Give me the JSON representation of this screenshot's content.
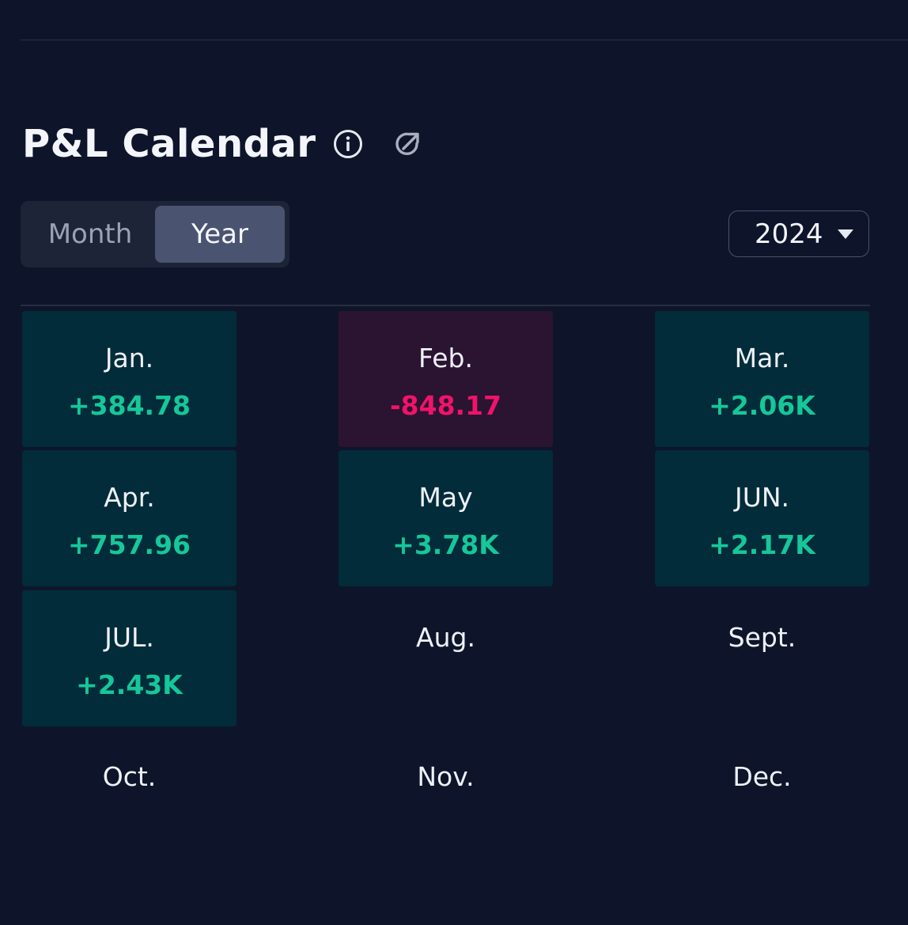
{
  "header": {
    "title": "P&L Calendar",
    "info_icon": "info-icon",
    "share_icon": "share-icon"
  },
  "toggle": {
    "options": [
      {
        "label": "Month",
        "selected": false
      },
      {
        "label": "Year",
        "selected": true
      }
    ]
  },
  "year_select": {
    "value": "2024",
    "icon": "chevron-down-icon"
  },
  "months": [
    {
      "label": "Jan.",
      "value": "+384.78",
      "status": "pos"
    },
    {
      "label": "Feb.",
      "value": "-848.17",
      "status": "neg"
    },
    {
      "label": "Mar.",
      "value": "+2.06K",
      "status": "pos"
    },
    {
      "label": "Apr.",
      "value": "+757.96",
      "status": "pos"
    },
    {
      "label": "May",
      "value": "+3.78K",
      "status": "pos"
    },
    {
      "label": "JUN.",
      "value": "+2.17K",
      "status": "pos"
    },
    {
      "label": "JUL.",
      "value": "+2.43K",
      "status": "pos"
    },
    {
      "label": "Aug.",
      "value": null,
      "status": "none"
    },
    {
      "label": "Sept.",
      "value": null,
      "status": "none"
    },
    {
      "label": "Oct.",
      "value": null,
      "status": "none"
    },
    {
      "label": "Nov.",
      "value": null,
      "status": "none"
    },
    {
      "label": "Dec.",
      "value": null,
      "status": "none"
    }
  ],
  "colors": {
    "background": "#0e152a",
    "positive_text": "#16c79a",
    "negative_text": "#f0136a",
    "positive_cell": "#022c3a",
    "negative_cell": "#2b1431",
    "toggle_active": "#4a5370"
  }
}
